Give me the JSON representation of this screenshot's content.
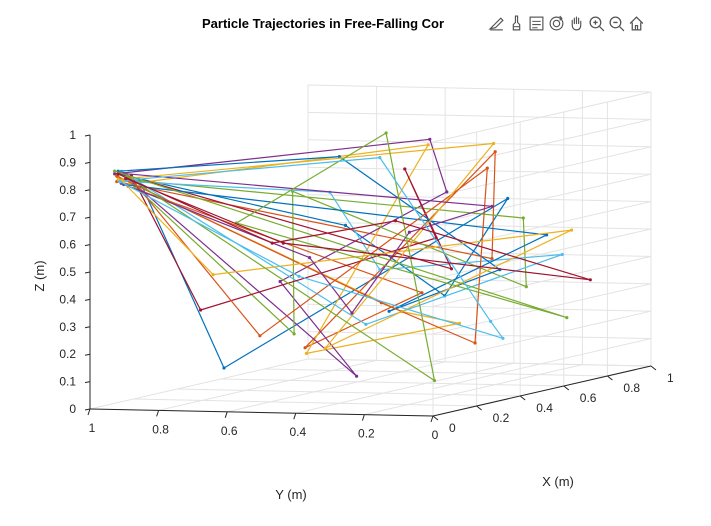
{
  "chart_data": {
    "type": "line",
    "subtype": "3d-line",
    "title": "Particle Trajectories in Free-Falling Cor",
    "xlabel": "X (m)",
    "ylabel": "Y (m)",
    "zlabel": "Z (m)",
    "xlim": [
      0,
      1
    ],
    "ylim": [
      0,
      1
    ],
    "zlim": [
      0,
      1
    ],
    "xticks": [
      "0",
      "0.2",
      "0.4",
      "0.6",
      "0.8",
      "1"
    ],
    "yticks": [
      "0",
      "0.2",
      "0.4",
      "0.6",
      "0.8",
      "1"
    ],
    "zticks": [
      "0",
      "0.1",
      "0.2",
      "0.3",
      "0.4",
      "0.5",
      "0.6",
      "0.7",
      "0.8",
      "0.9",
      "1"
    ],
    "grid": true,
    "box": true,
    "colors": [
      "#0072BD",
      "#D95319",
      "#EDB120",
      "#7E2F8E",
      "#77AC30",
      "#4DBEEE",
      "#A2142F"
    ],
    "series": [
      {
        "points": [
          [
            0.05,
            0.95,
            0.85
          ],
          [
            0.7,
            0.7,
            0.55
          ],
          [
            0.4,
            0.22,
            0.36
          ],
          [
            0.5,
            0.1,
            0.7
          ],
          [
            0.3,
            0.8,
            0.1
          ],
          [
            0.1,
            0.92,
            0.82
          ]
        ]
      },
      {
        "points": [
          [
            0.06,
            0.96,
            0.82
          ],
          [
            0.9,
            0.4,
            0.4
          ],
          [
            0.6,
            0.2,
            0.85
          ],
          [
            0.2,
            0.5,
            0.2
          ],
          [
            0.5,
            0.35,
            0.35
          ],
          [
            0.08,
            0.94,
            0.8
          ]
        ]
      },
      {
        "points": [
          [
            0.05,
            0.95,
            0.84
          ],
          [
            0.8,
            0.6,
            0.22
          ],
          [
            0.2,
            0.05,
            0.3
          ],
          [
            0.6,
            0.75,
            0.1
          ],
          [
            0.45,
            0.3,
            0.9
          ],
          [
            0.07,
            0.93,
            0.81
          ]
        ]
      },
      {
        "points": [
          [
            0.05,
            0.96,
            0.85
          ],
          [
            0.3,
            0.2,
            0.95
          ],
          [
            0.85,
            0.5,
            0.65
          ],
          [
            0.4,
            0.7,
            0.4
          ],
          [
            0.2,
            0.35,
            0.1
          ],
          [
            0.09,
            0.95,
            0.83
          ]
        ]
      },
      {
        "points": [
          [
            0.06,
            0.95,
            0.83
          ],
          [
            0.65,
            0.15,
            0.6
          ],
          [
            0.9,
            0.3,
            0.3
          ],
          [
            0.3,
            0.6,
            0.75
          ],
          [
            0.7,
            0.85,
            0.15
          ],
          [
            0.08,
            0.92,
            0.8
          ]
        ]
      },
      {
        "points": [
          [
            0.05,
            0.94,
            0.86
          ],
          [
            0.4,
            0.45,
            0.25
          ],
          [
            0.75,
            0.1,
            0.45
          ],
          [
            0.15,
            0.25,
            0.5
          ],
          [
            0.55,
            0.65,
            0.7
          ],
          [
            0.07,
            0.96,
            0.82
          ]
        ]
      },
      {
        "points": [
          [
            0.06,
            0.95,
            0.85
          ],
          [
            0.95,
            0.55,
            0.35
          ],
          [
            0.5,
            0.4,
            0.8
          ],
          [
            0.25,
            0.15,
            0.6
          ],
          [
            0.35,
            0.9,
            0.3
          ],
          [
            0.08,
            0.93,
            0.84
          ]
        ]
      },
      {
        "points": [
          [
            0.05,
            0.95,
            0.86
          ],
          [
            0.2,
            0.4,
            0.9
          ],
          [
            0.7,
            0.25,
            0.4
          ],
          [
            0.9,
            0.7,
            0.2
          ],
          [
            0.6,
            0.05,
            0.55
          ],
          [
            0.06,
            0.94,
            0.81
          ]
        ]
      },
      {
        "points": [
          [
            0.06,
            0.96,
            0.84
          ],
          [
            0.55,
            0.5,
            0.3
          ],
          [
            0.35,
            0.1,
            0.2
          ],
          [
            0.8,
            0.35,
            0.75
          ],
          [
            0.15,
            0.6,
            0.25
          ],
          [
            0.09,
            0.94,
            0.83
          ]
        ]
      },
      {
        "points": [
          [
            0.05,
            0.95,
            0.83
          ],
          [
            0.75,
            0.3,
            0.85
          ],
          [
            0.45,
            0.6,
            0.15
          ],
          [
            0.95,
            0.2,
            0.5
          ],
          [
            0.25,
            0.8,
            0.45
          ],
          [
            0.07,
            0.95,
            0.82
          ]
        ]
      },
      {
        "points": [
          [
            0.06,
            0.94,
            0.85
          ],
          [
            0.35,
            0.05,
            0.7
          ],
          [
            0.6,
            0.45,
            0.55
          ],
          [
            0.1,
            0.3,
            0.35
          ],
          [
            0.85,
            0.9,
            0.4
          ],
          [
            0.08,
            0.96,
            0.81
          ]
        ]
      },
      {
        "points": [
          [
            0.05,
            0.96,
            0.86
          ],
          [
            0.85,
            0.15,
            0.2
          ],
          [
            0.2,
            0.7,
            0.65
          ],
          [
            0.65,
            0.55,
            0.9
          ],
          [
            0.4,
            0.25,
            0.05
          ],
          [
            0.06,
            0.93,
            0.84
          ]
        ]
      },
      {
        "points": [
          [
            0.06,
            0.95,
            0.82
          ],
          [
            0.25,
            0.55,
            0.45
          ],
          [
            0.95,
            0.4,
            0.1
          ],
          [
            0.5,
            0.15,
            0.25
          ],
          [
            0.7,
            0.6,
            0.8
          ],
          [
            0.09,
            0.95,
            0.82
          ]
        ]
      },
      {
        "points": [
          [
            0.05,
            0.95,
            0.85
          ],
          [
            0.6,
            0.85,
            0.5
          ],
          [
            0.3,
            0.3,
            0.65
          ],
          [
            0.8,
            0.05,
            0.35
          ],
          [
            0.1,
            0.5,
            0.6
          ],
          [
            0.07,
            0.94,
            0.83
          ]
        ]
      }
    ]
  },
  "toolbar": {
    "icons": [
      "export-icon",
      "brush-icon",
      "datatip-icon",
      "rotate-icon",
      "pan-icon",
      "zoom-in-icon",
      "zoom-out-icon",
      "home-icon"
    ]
  }
}
